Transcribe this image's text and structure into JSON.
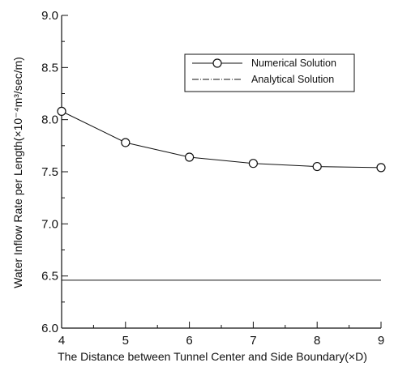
{
  "chart_data": {
    "type": "line",
    "title": "",
    "xlabel": "The Distance between Tunnel Center and Side Boundary(×D)",
    "ylabel": "Water Inflow Rate per Length(×10⁻⁴m³/sec/m)",
    "xlim": [
      4,
      9
    ],
    "ylim": [
      6.0,
      9.0
    ],
    "x_ticks": [
      "4",
      "5",
      "6",
      "7",
      "8",
      "9"
    ],
    "y_ticks": [
      "6.0",
      "6.5",
      "7.0",
      "7.5",
      "8.0",
      "8.5",
      "9.0"
    ],
    "grid": false,
    "legend_position": "top-right",
    "series": [
      {
        "name": "Numerical Solution",
        "marker": "open-circle",
        "x": [
          4,
          5,
          6,
          7,
          8,
          9
        ],
        "values": [
          8.08,
          7.78,
          7.64,
          7.58,
          7.55,
          7.54
        ]
      },
      {
        "name": "Analytical Solution",
        "marker": "none",
        "x": [
          4,
          9
        ],
        "values": [
          6.46,
          6.46
        ]
      }
    ]
  }
}
